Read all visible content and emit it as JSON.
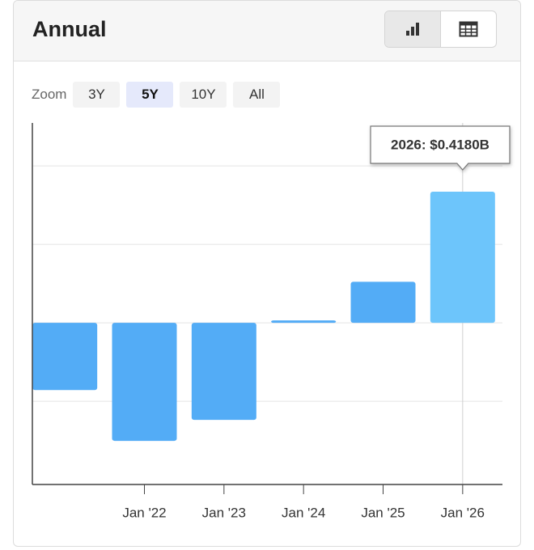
{
  "header": {
    "title": "Annual"
  },
  "zoom": {
    "label": "Zoom",
    "options": [
      "3Y",
      "5Y",
      "10Y",
      "All"
    ],
    "active_index": 1
  },
  "chart_data": {
    "type": "bar",
    "categories": [
      null,
      "Jan '22",
      "Jan '23",
      "Jan '24",
      "Jan '25",
      "Jan '26"
    ],
    "values": [
      -0.214,
      -0.376,
      -0.309,
      0.008,
      0.131,
      0.418
    ],
    "colors": [
      "#53acf6",
      "#53acf6",
      "#53acf6",
      "#53acf6",
      "#53acf6",
      "#6dc5fb"
    ],
    "ylim": [
      -0.515,
      0.637
    ],
    "yticks": [
      -0.25,
      0,
      0.25,
      0.5
    ],
    "grid": true,
    "tooltip": "2026: $0.4180B"
  }
}
